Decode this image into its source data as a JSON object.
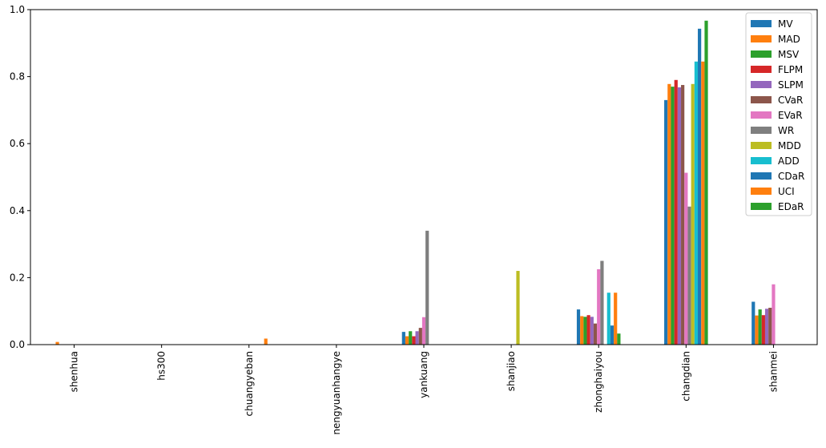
{
  "chart_data": {
    "type": "bar",
    "title": "",
    "xlabel": "",
    "ylabel": "",
    "ylim": [
      0,
      1.0
    ],
    "yticks": [
      "0.0",
      "0.2",
      "0.4",
      "0.6",
      "0.8",
      "1.0"
    ],
    "grid": false,
    "legend_position": "top-right",
    "categories": [
      "shenhua",
      "hs300",
      "chuangyeban",
      "nengyuanhangye",
      "yankuang",
      "shanjiao",
      "zhonghaiyou",
      "changdian",
      "shanmei"
    ],
    "series": [
      {
        "name": "MV",
        "color": "#1f77b4",
        "values": [
          0,
          0,
          0,
          0,
          0.038,
          0,
          0.105,
          0.73,
          0.128
        ]
      },
      {
        "name": "MAD",
        "color": "#ff7f0e",
        "values": [
          0.008,
          0,
          0,
          0,
          0.025,
          0,
          0.085,
          0.778,
          0.087
        ]
      },
      {
        "name": "MSV",
        "color": "#2ca02c",
        "values": [
          0,
          0,
          0,
          0,
          0.04,
          0,
          0.083,
          0.77,
          0.105
        ]
      },
      {
        "name": "FLPM",
        "color": "#d62728",
        "values": [
          0,
          0,
          0,
          0,
          0.025,
          0,
          0.088,
          0.79,
          0.088
        ]
      },
      {
        "name": "SLPM",
        "color": "#9467bd",
        "values": [
          0,
          0,
          0,
          0,
          0.04,
          0,
          0.083,
          0.768,
          0.107
        ]
      },
      {
        "name": "CVaR",
        "color": "#8c564b",
        "values": [
          0,
          0,
          0,
          0,
          0.05,
          0,
          0.063,
          0.775,
          0.11
        ]
      },
      {
        "name": "EVaR",
        "color": "#e377c2",
        "values": [
          0,
          0,
          0,
          0,
          0.082,
          0,
          0.225,
          0.513,
          0.18
        ]
      },
      {
        "name": "WR",
        "color": "#7f7f7f",
        "values": [
          0,
          0,
          0,
          0,
          0.34,
          0,
          0.25,
          0.412,
          0
        ]
      },
      {
        "name": "MDD",
        "color": "#bcbd22",
        "values": [
          0,
          0,
          0,
          0,
          0,
          0.22,
          0,
          0.778,
          0
        ]
      },
      {
        "name": "ADD",
        "color": "#17becf",
        "values": [
          0,
          0,
          0,
          0,
          0,
          0,
          0.155,
          0.845,
          0
        ]
      },
      {
        "name": "CDaR",
        "color": "#1f77b4",
        "values": [
          0,
          0,
          0,
          0,
          0,
          0,
          0.057,
          0.943,
          0
        ]
      },
      {
        "name": "UCI",
        "color": "#ff7f0e",
        "values": [
          0,
          0,
          0.018,
          0,
          0,
          0,
          0.155,
          0.845,
          0
        ]
      },
      {
        "name": "EDaR",
        "color": "#2ca02c",
        "values": [
          0,
          0,
          0,
          0,
          0,
          0,
          0.033,
          0.967,
          0
        ]
      }
    ]
  }
}
